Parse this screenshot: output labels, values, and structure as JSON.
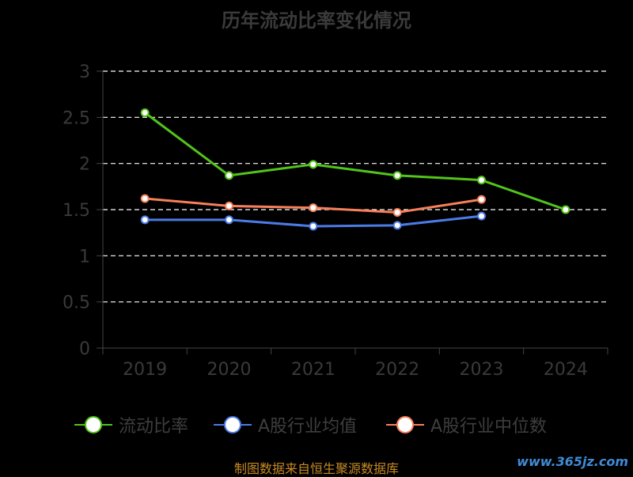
{
  "chart_data": {
    "type": "line",
    "title": "历年流动比率变化情况",
    "categories": [
      "2019",
      "2020",
      "2021",
      "2022",
      "2023",
      "2024"
    ],
    "y_ticks": [
      "0",
      "0.5",
      "1",
      "1.5",
      "2",
      "2.5",
      "3"
    ],
    "ylim": [
      0,
      3
    ],
    "grid": true,
    "legend_position": "bottom",
    "series": [
      {
        "name": "流动比率",
        "color": "#52c41a",
        "values": [
          2.55,
          1.87,
          1.99,
          1.87,
          1.82,
          1.5
        ]
      },
      {
        "name": "A股行业均值",
        "color": "#4b7be5",
        "values": [
          1.39,
          1.39,
          1.32,
          1.33,
          1.43,
          null
        ]
      },
      {
        "name": "A股行业中位数",
        "color": "#f7805a",
        "values": [
          1.62,
          1.54,
          1.52,
          1.47,
          1.61,
          null
        ]
      }
    ]
  },
  "footer": {
    "source_text": "制图数据来自恒生聚源数据库",
    "watermark_text": "www.365jz.com"
  }
}
